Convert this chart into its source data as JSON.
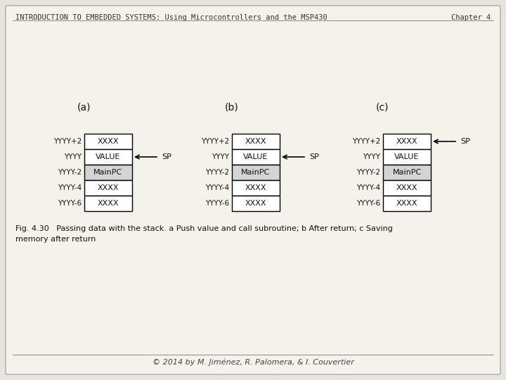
{
  "header_left": "INTRODUCTION TO EMBEDDED SYSTEMS: Using Microcontrollers and the MSP430",
  "header_right": "Chapter 4",
  "footer": "© 2014 by M. Jiménez, R. Palomera, & I. Couvertier",
  "fig_caption": "Fig. 4.30   Passing data with the stack. a Push value and call subroutine; b After return; c Saving\nmemory after return",
  "bg_color": "#e8e4dc",
  "panel_bg": "#f5f2ec",
  "box_fill": "#ffffff",
  "border_color": "#000000",
  "diagrams": [
    {
      "label": "(a)",
      "rows": [
        {
          "addr": "YYYY+2",
          "content": "XXXX",
          "shaded": false
        },
        {
          "addr": "YYYY",
          "content": "VALUE",
          "shaded": false
        },
        {
          "addr": "YYYY-2",
          "content": "MainPC",
          "shaded": true
        },
        {
          "addr": "YYYY-4",
          "content": "XXXX",
          "shaded": false
        },
        {
          "addr": "YYYY-6",
          "content": "XXXX",
          "shaded": false
        }
      ],
      "sp_row": 1,
      "sp_side": "right",
      "sp_label": "SP"
    },
    {
      "label": "(b)",
      "rows": [
        {
          "addr": "YYYY+2",
          "content": "XXXX",
          "shaded": false
        },
        {
          "addr": "YYYY",
          "content": "VALUE",
          "shaded": false
        },
        {
          "addr": "YYYY-2",
          "content": "MainPC",
          "shaded": true
        },
        {
          "addr": "YYYY-4",
          "content": "XXXX",
          "shaded": false
        },
        {
          "addr": "YYYY-6",
          "content": "XXXX",
          "shaded": false
        }
      ],
      "sp_row": 1,
      "sp_side": "right",
      "sp_label": "SP"
    },
    {
      "label": "(c)",
      "rows": [
        {
          "addr": "YYYY+2",
          "content": "XXXX",
          "shaded": false
        },
        {
          "addr": "YYYY",
          "content": "VALUE",
          "shaded": false
        },
        {
          "addr": "YYYY-2",
          "content": "MainPC",
          "shaded": true
        },
        {
          "addr": "YYYY-4",
          "content": "XXXX",
          "shaded": false
        },
        {
          "addr": "YYYY-6",
          "content": "XXXX",
          "shaded": false
        }
      ],
      "sp_row": 0,
      "sp_side": "right",
      "sp_label": "SP"
    }
  ]
}
